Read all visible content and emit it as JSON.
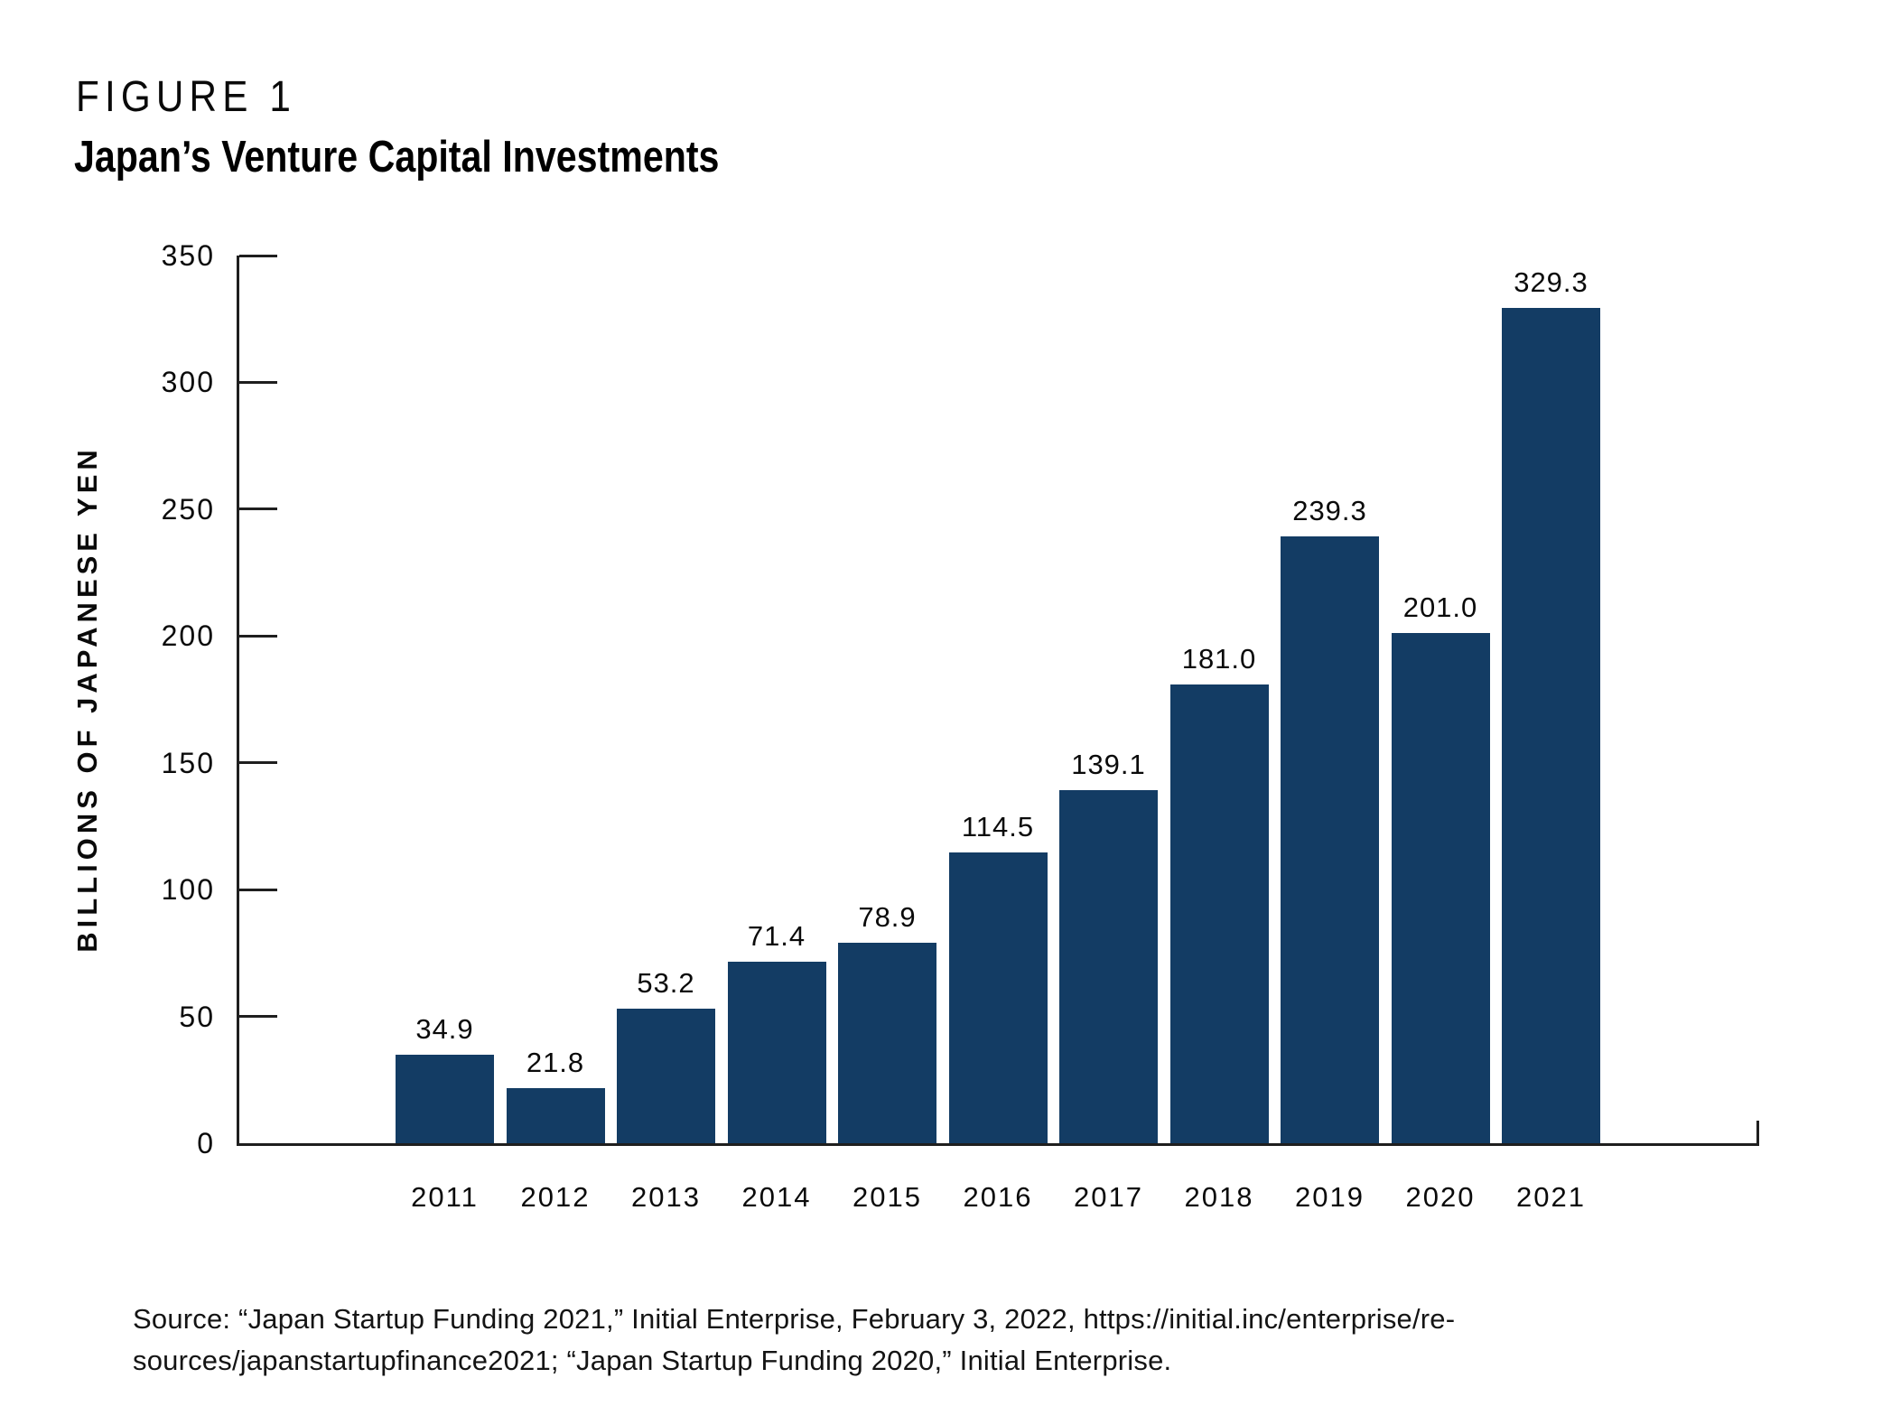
{
  "figure_label": "FIGURE 1",
  "title": "Japan’s Venture Capital Investments",
  "source": {
    "line1": "Source: “Japan Startup Funding 2021,” Initial Enterprise, February 3, 2022, https://initial.inc/enterprise/re-",
    "line2": "sources/japanstartupfinance2021; “Japan Startup Funding 2020,” Initial Enterprise."
  },
  "colors": {
    "bar_fill": "#133c64",
    "axis": "#1f1f1f",
    "text": "#0a0a0a"
  },
  "chart_data": {
    "type": "bar",
    "title": "Japan’s Venture Capital Investments",
    "categories": [
      "2011",
      "2012",
      "2013",
      "2014",
      "2015",
      "2016",
      "2017",
      "2018",
      "2019",
      "2020",
      "2021"
    ],
    "values": [
      34.9,
      21.8,
      53.2,
      71.4,
      78.9,
      114.5,
      139.1,
      181.0,
      239.3,
      201.0,
      329.3
    ],
    "value_labels": [
      "34.9",
      "21.8",
      "53.2",
      "71.4",
      "78.9",
      "114.5",
      "139.1",
      "181.0",
      "239.3",
      "201.0",
      "329.3"
    ],
    "xlabel": "",
    "ylabel": "BILLIONS OF JAPANESE YEN",
    "ylim": [
      0,
      350
    ],
    "yticks": [
      0,
      50,
      100,
      150,
      200,
      250,
      300,
      350
    ],
    "grid": false,
    "legend_position": "none",
    "bar_value_labels_shown": true
  }
}
